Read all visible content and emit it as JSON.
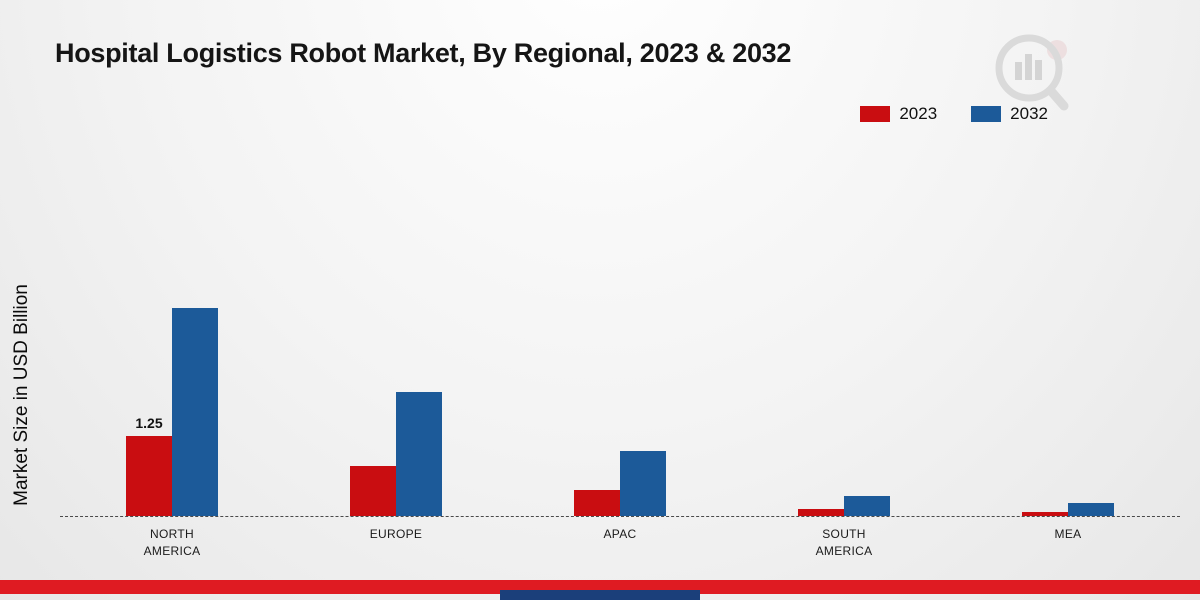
{
  "title": "Hospital Logistics Robot Market, By Regional, 2023 & 2032",
  "ylabel": "Market Size in USD Billion",
  "legend": {
    "items": [
      {
        "label": "2023",
        "color": "#c90d11"
      },
      {
        "label": "2032",
        "color": "#1c5a99"
      }
    ]
  },
  "colors": {
    "footer_band": "#df1b22",
    "footer_block": "#1b3f7a"
  },
  "icons": {
    "watermark": "mrfr-bar-chart-magnifier-logo"
  },
  "chart_data": {
    "type": "bar",
    "title": "Hospital Logistics Robot Market, By Regional, 2023 & 2032",
    "xlabel": "",
    "ylabel": "Market Size in USD Billion",
    "categories": [
      "NORTH AMERICA",
      "EUROPE",
      "APAC",
      "SOUTH AMERICA",
      "MEA"
    ],
    "series": [
      {
        "name": "2023",
        "color": "#c90d11",
        "values": [
          1.25,
          0.78,
          0.41,
          0.11,
          0.06
        ],
        "labels": [
          "1.25",
          "",
          "",
          "",
          ""
        ]
      },
      {
        "name": "2032",
        "color": "#1c5a99",
        "values": [
          3.25,
          1.94,
          1.02,
          0.31,
          0.2
        ],
        "labels": [
          "",
          "",
          "",
          "",
          ""
        ]
      }
    ],
    "ylim": [
      0,
      3.6
    ],
    "grid": false,
    "baseline_style": "dashed",
    "legend_position": "top-right",
    "unit": "USD Billion"
  }
}
